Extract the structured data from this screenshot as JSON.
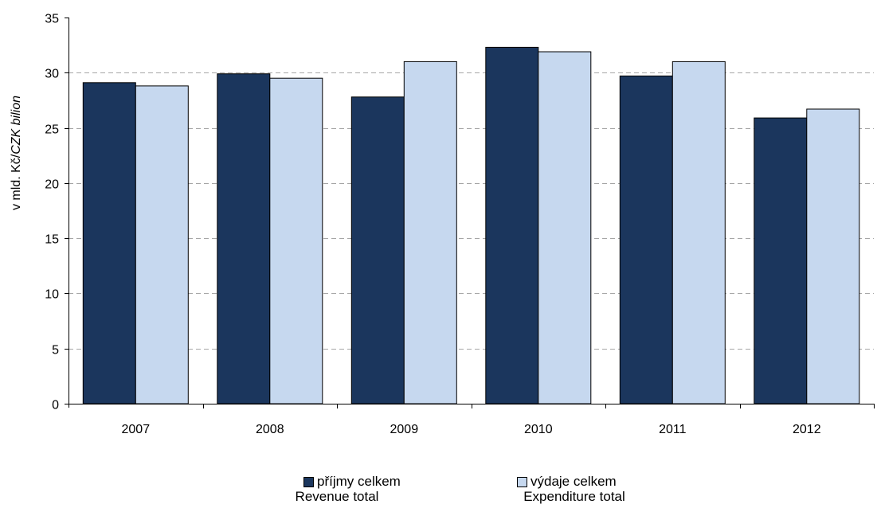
{
  "chart_data": {
    "type": "bar",
    "categories": [
      "2007",
      "2008",
      "2009",
      "2010",
      "2011",
      "2012"
    ],
    "series": [
      {
        "name": "příjmy celkem",
        "name_en": "Revenue total",
        "color": "#1b365d",
        "values": [
          29.1,
          29.9,
          27.8,
          32.3,
          29.7,
          25.9
        ]
      },
      {
        "name": "výdaje celkem",
        "name_en": "Expenditure total",
        "color": "#c6d8ef",
        "values": [
          28.8,
          29.5,
          31.0,
          31.9,
          31.0,
          26.7
        ]
      }
    ],
    "ylabel": "v mld. Kč/",
    "ylabel_italic": "CZK bilion",
    "ylim": [
      0,
      35
    ],
    "yticks": [
      "0",
      "5",
      "10",
      "15",
      "20",
      "25",
      "30",
      "35"
    ],
    "grid": true,
    "legend_position": "bottom"
  }
}
